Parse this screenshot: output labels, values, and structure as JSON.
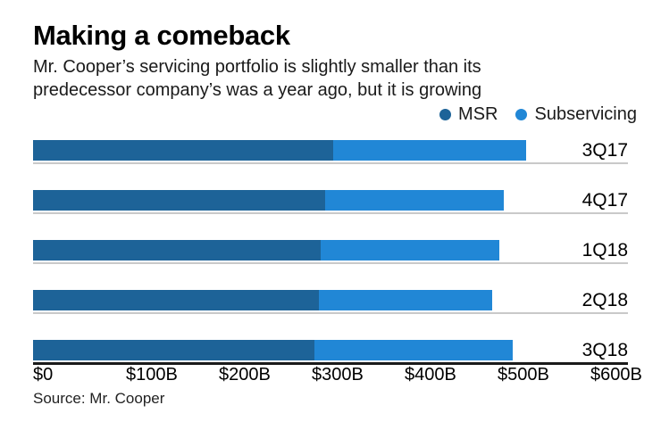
{
  "header": {
    "title": "Making a comeback",
    "subtitle_line1": "Mr. Cooper’s servicing portfolio is slightly smaller than its",
    "subtitle_line2": "predecessor company’s was a year ago, but it is growing"
  },
  "legend": [
    {
      "label": "MSR",
      "color": "#1d6398",
      "icon": "circle-dot"
    },
    {
      "label": "Subservicing",
      "color": "#2187d6",
      "icon": "circle-dot"
    }
  ],
  "chart_data": {
    "type": "bar",
    "orientation": "horizontal",
    "stacked": true,
    "title": "Making a comeback",
    "categories": [
      "3Q17",
      "4Q17",
      "1Q18",
      "2Q18",
      "3Q18"
    ],
    "series": [
      {
        "name": "MSR",
        "color": "#1d6398",
        "values": [
          323,
          314,
          310,
          308,
          303
        ]
      },
      {
        "name": "Subservicing",
        "color": "#2187d6",
        "values": [
          208,
          193,
          192,
          186,
          213
        ]
      }
    ],
    "totals": [
      531,
      507,
      502,
      494,
      516
    ],
    "x_axis": {
      "ticks": [
        "$0",
        "$100B",
        "$200B",
        "$300B",
        "$400B",
        "$500B",
        "$600B"
      ],
      "tick_values": [
        0,
        100,
        200,
        300,
        400,
        500,
        600
      ],
      "min": 0,
      "max": 600,
      "unit": "$ billions"
    },
    "grid": false,
    "legend_position": "top-right",
    "colors": {
      "row_baseline": "#c9c9c9",
      "axis_line": "#1a1a1a"
    }
  },
  "footer": {
    "source": "Source: Mr. Cooper"
  }
}
